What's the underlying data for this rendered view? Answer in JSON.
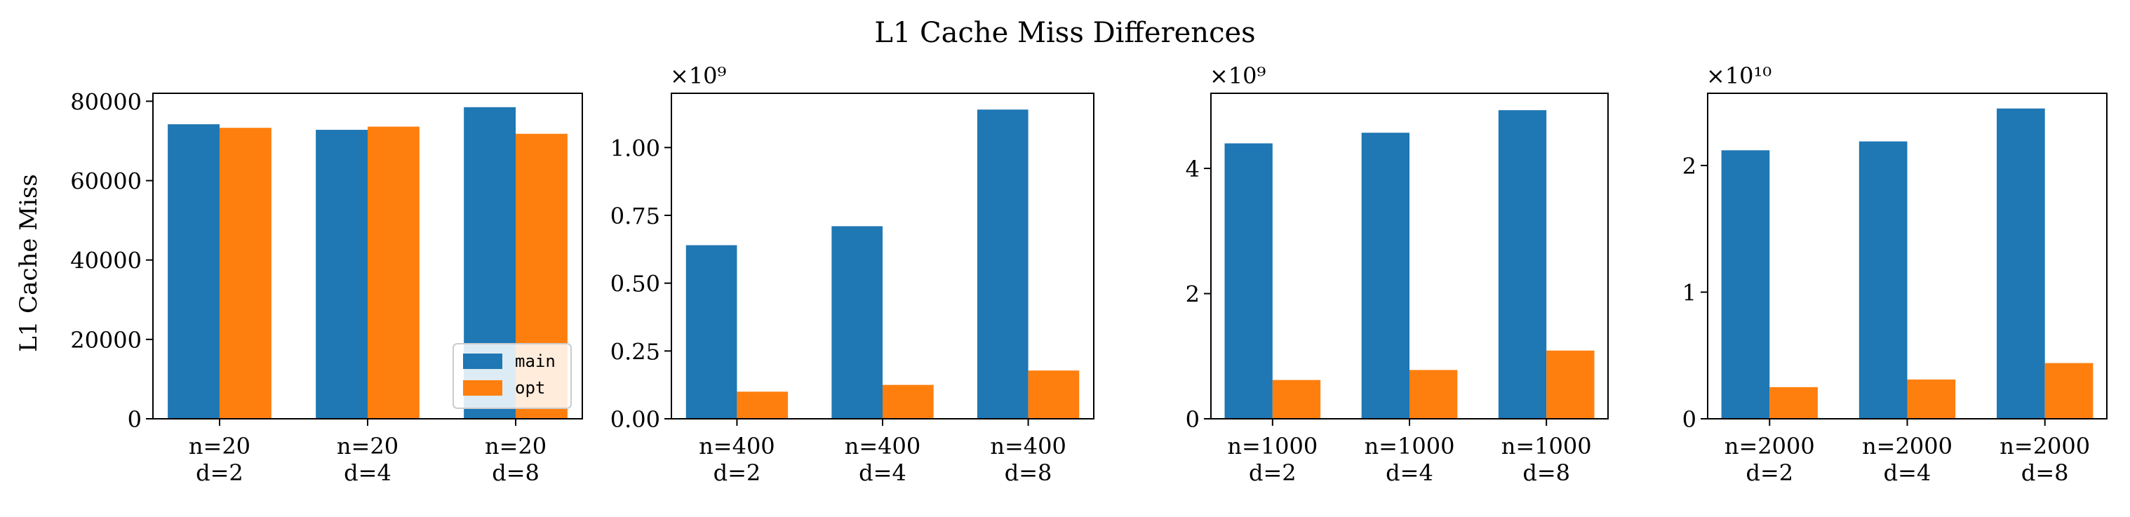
{
  "title": "L1 Cache Miss Differences",
  "ylabel": "L1 Cache Miss",
  "colors": {
    "main": "#1f77b4",
    "opt": "#ff7f0e"
  },
  "legend": {
    "placement": "lower-right",
    "panel": 0,
    "entries": [
      "main",
      "opt"
    ]
  },
  "chart_data": [
    {
      "type": "bar",
      "categories": [
        "n=20\nd=2",
        "n=20\nd=4",
        "n=20\nd=8"
      ],
      "series": [
        {
          "name": "main",
          "values": [
            74200,
            72800,
            78500
          ]
        },
        {
          "name": "opt",
          "values": [
            73300,
            73600,
            71800
          ]
        }
      ],
      "ylim": [
        0,
        82000
      ],
      "yticks": [
        0,
        20000,
        40000,
        60000,
        80000
      ],
      "yticklabels": [
        "0",
        "20000",
        "40000",
        "60000",
        "80000"
      ],
      "scale_label": "",
      "ylabel": "L1 Cache Miss"
    },
    {
      "type": "bar",
      "categories": [
        "n=400\nd=2",
        "n=400\nd=4",
        "n=400\nd=8"
      ],
      "series": [
        {
          "name": "main",
          "values": [
            640000000,
            710000000,
            1140000000
          ]
        },
        {
          "name": "opt",
          "values": [
            100000000,
            125000000,
            178000000
          ]
        }
      ],
      "ylim": [
        0,
        1200000000
      ],
      "yticks": [
        0,
        250000000,
        500000000,
        750000000,
        1000000000
      ],
      "yticklabels": [
        "0.00",
        "0.25",
        "0.50",
        "0.75",
        "1.00"
      ],
      "scale_label": "×10⁹",
      "ylabel": ""
    },
    {
      "type": "bar",
      "categories": [
        "n=1000\nd=2",
        "n=1000\nd=4",
        "n=1000\nd=8"
      ],
      "series": [
        {
          "name": "main",
          "values": [
            4400000000,
            4570000000,
            4930000000
          ]
        },
        {
          "name": "opt",
          "values": [
            620000000,
            780000000,
            1090000000
          ]
        }
      ],
      "ylim": [
        0,
        5200000000
      ],
      "yticks": [
        0,
        2000000000,
        4000000000
      ],
      "yticklabels": [
        "0",
        "2",
        "4"
      ],
      "scale_label": "×10⁹",
      "ylabel": ""
    },
    {
      "type": "bar",
      "categories": [
        "n=2000\nd=2",
        "n=2000\nd=4",
        "n=2000\nd=8"
      ],
      "series": [
        {
          "name": "main",
          "values": [
            21200000000,
            21900000000,
            24500000000
          ]
        },
        {
          "name": "opt",
          "values": [
            2500000000,
            3100000000,
            4400000000
          ]
        }
      ],
      "ylim": [
        0,
        25700000000
      ],
      "yticks": [
        0,
        10000000000,
        20000000000
      ],
      "yticklabels": [
        "0",
        "1",
        "2"
      ],
      "scale_label": "×10¹⁰",
      "ylabel": ""
    }
  ]
}
